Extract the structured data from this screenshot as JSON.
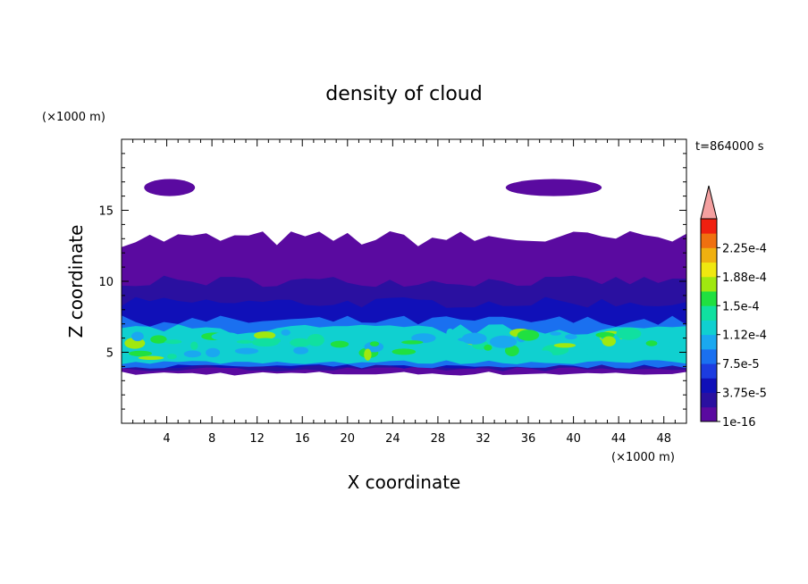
{
  "chart_data": {
    "type": "heatmap",
    "title": "density of cloud",
    "xlabel": "X coordinate",
    "ylabel": "Z coordinate",
    "x_unit": "(×1000 m)",
    "y_unit": "(×1000 m)",
    "time_label": "t=864000 s",
    "xlim": [
      0,
      50
    ],
    "ylim": [
      0,
      20
    ],
    "x_ticks": [
      4,
      8,
      12,
      16,
      20,
      24,
      28,
      32,
      36,
      40,
      44,
      48
    ],
    "y_ticks": [
      5,
      10,
      15
    ],
    "colorbar": {
      "levels": [
        1e-16,
        1.875e-05,
        3.75e-05,
        5.625e-05,
        7.5e-05,
        9.375e-05,
        0.0001125,
        0.00013125,
        0.00015,
        0.00016875,
        0.0001875,
        0.00020625,
        0.000225,
        0.00024375
      ],
      "labels": [
        {
          "level": 1e-16,
          "text": "1e-16"
        },
        {
          "level": 3.75e-05,
          "text": "3.75e-5"
        },
        {
          "level": 7.5e-05,
          "text": "7.5e-5"
        },
        {
          "level": 0.0001125,
          "text": "1.12e-4"
        },
        {
          "level": 0.00015,
          "text": "1.5e-4"
        },
        {
          "level": 0.0001875,
          "text": "1.88e-4"
        },
        {
          "level": 0.000225,
          "text": "2.25e-4"
        }
      ],
      "colors": [
        "#5a0aa0",
        "#2a10a0",
        "#1010b8",
        "#1c3ce0",
        "#1a70f0",
        "#1aa8f0",
        "#10d0d0",
        "#10e0a0",
        "#20e040",
        "#a0e810",
        "#f0e810",
        "#f0b010",
        "#f07010",
        "#f02010"
      ],
      "overflow_color": "#f4a0a0"
    },
    "cloud_layers": [
      {
        "z_range": [
          3.5,
          13.0
        ],
        "level_index": 0
      },
      {
        "z_range": [
          3.8,
          10.0
        ],
        "level_index": 1
      },
      {
        "z_range": [
          4.0,
          8.5
        ],
        "level_index": 2
      },
      {
        "z_range": [
          4.0,
          7.2
        ],
        "level_index": 4
      },
      {
        "z_range": [
          4.3,
          6.6
        ],
        "level_index": 6
      }
    ],
    "grid": false
  }
}
